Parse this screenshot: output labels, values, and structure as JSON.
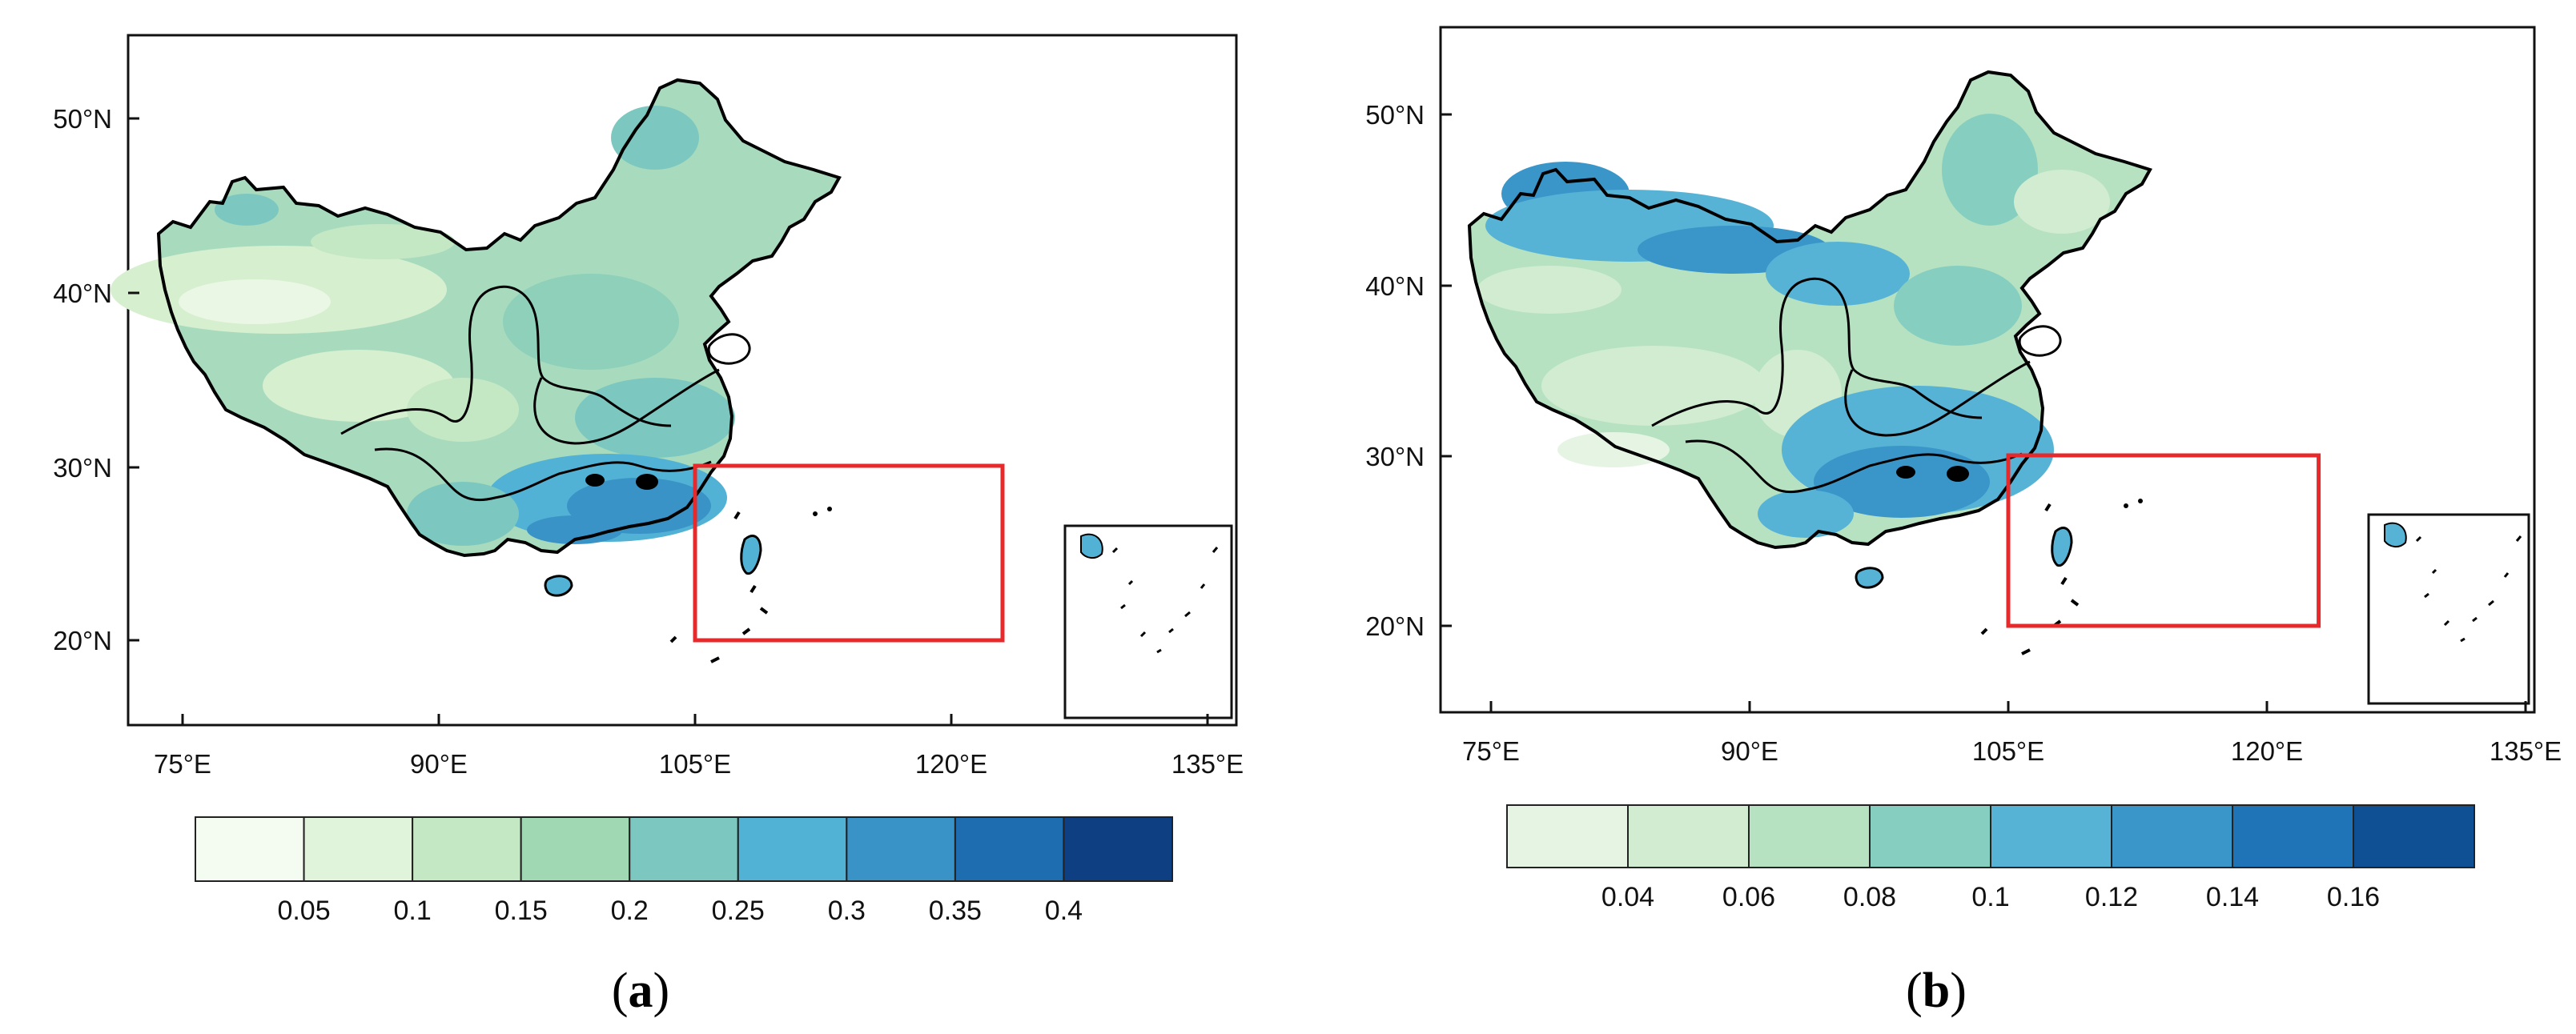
{
  "panels": [
    {
      "id": "a",
      "caption_open": "(",
      "caption_letter": "a",
      "caption_close": ")",
      "lon_ticks": [
        "75°E",
        "90°E",
        "105°E",
        "120°E",
        "135°E"
      ],
      "lat_ticks": [
        "20°N",
        "30°N",
        "40°N",
        "50°N"
      ],
      "colorbar": {
        "colors": [
          "#f4fbf1",
          "#e0f3db",
          "#c5e8c4",
          "#a0d8b4",
          "#7cc8c0",
          "#52b2d6",
          "#3a93c6",
          "#1d6db0",
          "#0e3f83"
        ],
        "labels": [
          "0.05",
          "0.1",
          "0.15",
          "0.2",
          "0.25",
          "0.3",
          "0.35",
          "0.4"
        ]
      },
      "study_box": {
        "lon": [
          105,
          123
        ],
        "lat": [
          20,
          30
        ],
        "color": "#e8292b"
      }
    },
    {
      "id": "b",
      "caption_open": "(",
      "caption_letter": "b",
      "caption_close": ")",
      "lon_ticks": [
        "75°E",
        "90°E",
        "105°E",
        "120°E",
        "135°E"
      ],
      "lat_ticks": [
        "20°N",
        "30°N",
        "40°N",
        "50°N"
      ],
      "colorbar": {
        "colors": [
          "#e6f5e3",
          "#d1ecd1",
          "#b6e2c1",
          "#86cfc0",
          "#56b3d6",
          "#3a96c9",
          "#1f74b7",
          "#0f4f93"
        ],
        "labels": [
          "0.04",
          "0.06",
          "0.08",
          "0.1",
          "0.12",
          "0.14",
          "0.16"
        ]
      },
      "study_box": {
        "lon": [
          105,
          123
        ],
        "lat": [
          20,
          30
        ],
        "color": "#e8292b"
      }
    }
  ]
}
